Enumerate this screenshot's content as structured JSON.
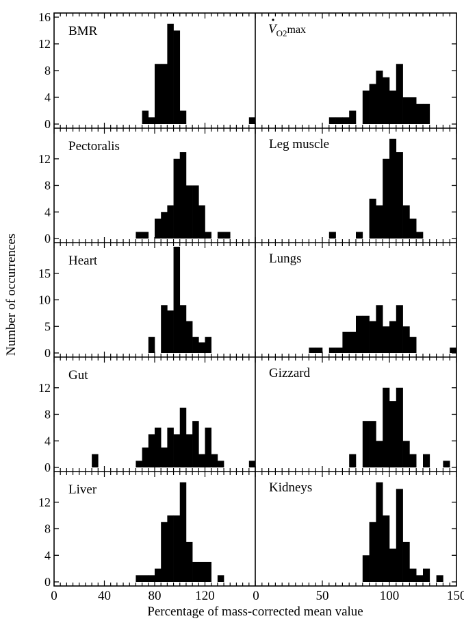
{
  "chart_data": {
    "type": "bar",
    "ylabel": "Number of occurrences",
    "xlabel": "Percentage of mass-corrected mean value",
    "x_ticks_left": [
      "0",
      "40",
      "80",
      "120"
    ],
    "x_ticks_right": [
      "0",
      "50",
      "100",
      "150"
    ],
    "panels": [
      {
        "name": "BMR",
        "title_plain": "BMR",
        "ylim": [
          0,
          16
        ],
        "yticks": [
          "0",
          "4",
          "8",
          "12",
          "16"
        ],
        "xlim": [
          0,
          160
        ],
        "bin_width": 5,
        "bins": [
          {
            "x": 72.5,
            "y": 2
          },
          {
            "x": 77.5,
            "y": 1
          },
          {
            "x": 82.5,
            "y": 9
          },
          {
            "x": 87.5,
            "y": 9
          },
          {
            "x": 92.5,
            "y": 15
          },
          {
            "x": 97.5,
            "y": 14
          },
          {
            "x": 102.5,
            "y": 2
          },
          {
            "x": 157.5,
            "y": 1
          }
        ]
      },
      {
        "name": "VO2max",
        "title_plain": "",
        "ylim": [
          0,
          16
        ],
        "yticks": [],
        "xlim": [
          0,
          150
        ],
        "bin_width": 5,
        "bins": [
          {
            "x": 57.5,
            "y": 1
          },
          {
            "x": 62.5,
            "y": 1
          },
          {
            "x": 67.5,
            "y": 1
          },
          {
            "x": 72.5,
            "y": 2
          },
          {
            "x": 82.5,
            "y": 5
          },
          {
            "x": 87.5,
            "y": 6
          },
          {
            "x": 92.5,
            "y": 8
          },
          {
            "x": 97.5,
            "y": 7
          },
          {
            "x": 102.5,
            "y": 5
          },
          {
            "x": 107.5,
            "y": 9
          },
          {
            "x": 112.5,
            "y": 4
          },
          {
            "x": 117.5,
            "y": 4
          },
          {
            "x": 122.5,
            "y": 3
          },
          {
            "x": 127.5,
            "y": 3
          }
        ]
      },
      {
        "name": "Pectoralis",
        "title_plain": "Pectoralis",
        "ylim": [
          0,
          16
        ],
        "yticks": [
          "0",
          "4",
          "8",
          "12"
        ],
        "xlim": [
          0,
          160
        ],
        "bin_width": 5,
        "bins": [
          {
            "x": 67.5,
            "y": 1
          },
          {
            "x": 72.5,
            "y": 1
          },
          {
            "x": 82.5,
            "y": 3
          },
          {
            "x": 87.5,
            "y": 4
          },
          {
            "x": 92.5,
            "y": 5
          },
          {
            "x": 97.5,
            "y": 12
          },
          {
            "x": 102.5,
            "y": 13
          },
          {
            "x": 107.5,
            "y": 8
          },
          {
            "x": 112.5,
            "y": 8
          },
          {
            "x": 117.5,
            "y": 5
          },
          {
            "x": 122.5,
            "y": 1
          },
          {
            "x": 132.5,
            "y": 1
          },
          {
            "x": 137.5,
            "y": 1
          }
        ]
      },
      {
        "name": "Leg muscle",
        "title_plain": "Leg muscle",
        "ylim": [
          0,
          16
        ],
        "yticks": [],
        "xlim": [
          0,
          150
        ],
        "bin_width": 5,
        "bins": [
          {
            "x": 57.5,
            "y": 1
          },
          {
            "x": 77.5,
            "y": 1
          },
          {
            "x": 87.5,
            "y": 6
          },
          {
            "x": 92.5,
            "y": 5
          },
          {
            "x": 97.5,
            "y": 12
          },
          {
            "x": 102.5,
            "y": 15
          },
          {
            "x": 107.5,
            "y": 13
          },
          {
            "x": 112.5,
            "y": 5
          },
          {
            "x": 117.5,
            "y": 3
          },
          {
            "x": 122.5,
            "y": 1
          }
        ]
      },
      {
        "name": "Heart",
        "title_plain": "Heart",
        "ylim": [
          0,
          20
        ],
        "yticks": [
          "0",
          "5",
          "10",
          "15"
        ],
        "xlim": [
          0,
          160
        ],
        "bin_width": 5,
        "bins": [
          {
            "x": 77.5,
            "y": 3
          },
          {
            "x": 87.5,
            "y": 9
          },
          {
            "x": 92.5,
            "y": 8
          },
          {
            "x": 97.5,
            "y": 20
          },
          {
            "x": 102.5,
            "y": 9
          },
          {
            "x": 107.5,
            "y": 6
          },
          {
            "x": 112.5,
            "y": 3
          },
          {
            "x": 117.5,
            "y": 2
          },
          {
            "x": 122.5,
            "y": 3
          }
        ]
      },
      {
        "name": "Lungs",
        "title_plain": "Lungs",
        "ylim": [
          0,
          20
        ],
        "yticks": [],
        "xlim": [
          0,
          150
        ],
        "bin_width": 5,
        "bins": [
          {
            "x": 42.5,
            "y": 1
          },
          {
            "x": 47.5,
            "y": 1
          },
          {
            "x": 57.5,
            "y": 1
          },
          {
            "x": 62.5,
            "y": 1
          },
          {
            "x": 67.5,
            "y": 4
          },
          {
            "x": 72.5,
            "y": 4
          },
          {
            "x": 77.5,
            "y": 7
          },
          {
            "x": 82.5,
            "y": 7
          },
          {
            "x": 87.5,
            "y": 6
          },
          {
            "x": 92.5,
            "y": 9
          },
          {
            "x": 97.5,
            "y": 5
          },
          {
            "x": 102.5,
            "y": 6
          },
          {
            "x": 107.5,
            "y": 9
          },
          {
            "x": 112.5,
            "y": 5
          },
          {
            "x": 117.5,
            "y": 3
          },
          {
            "x": 147.5,
            "y": 1
          }
        ]
      },
      {
        "name": "Gut",
        "title_plain": "Gut",
        "ylim": [
          0,
          16
        ],
        "yticks": [
          "0",
          "4",
          "8",
          "12"
        ],
        "xlim": [
          0,
          160
        ],
        "bin_width": 5,
        "bins": [
          {
            "x": 32.5,
            "y": 2
          },
          {
            "x": 67.5,
            "y": 1
          },
          {
            "x": 72.5,
            "y": 3
          },
          {
            "x": 77.5,
            "y": 5
          },
          {
            "x": 82.5,
            "y": 6
          },
          {
            "x": 87.5,
            "y": 3
          },
          {
            "x": 92.5,
            "y": 6
          },
          {
            "x": 97.5,
            "y": 5
          },
          {
            "x": 102.5,
            "y": 9
          },
          {
            "x": 107.5,
            "y": 5
          },
          {
            "x": 112.5,
            "y": 7
          },
          {
            "x": 117.5,
            "y": 2
          },
          {
            "x": 122.5,
            "y": 6
          },
          {
            "x": 127.5,
            "y": 2
          },
          {
            "x": 132.5,
            "y": 1
          },
          {
            "x": 157.5,
            "y": 1
          }
        ]
      },
      {
        "name": "Gizzard",
        "title_plain": "Gizzard",
        "ylim": [
          0,
          16
        ],
        "yticks": [],
        "xlim": [
          0,
          150
        ],
        "bin_width": 5,
        "bins": [
          {
            "x": 72.5,
            "y": 2
          },
          {
            "x": 82.5,
            "y": 7
          },
          {
            "x": 87.5,
            "y": 7
          },
          {
            "x": 92.5,
            "y": 4
          },
          {
            "x": 97.5,
            "y": 12
          },
          {
            "x": 102.5,
            "y": 10
          },
          {
            "x": 107.5,
            "y": 12
          },
          {
            "x": 112.5,
            "y": 4
          },
          {
            "x": 117.5,
            "y": 2
          },
          {
            "x": 127.5,
            "y": 2
          },
          {
            "x": 142.5,
            "y": 1
          }
        ]
      },
      {
        "name": "Liver",
        "title_plain": "Liver",
        "ylim": [
          0,
          16
        ],
        "yticks": [
          "0",
          "4",
          "8",
          "12"
        ],
        "xlim": [
          0,
          160
        ],
        "bin_width": 5,
        "bins": [
          {
            "x": 67.5,
            "y": 1
          },
          {
            "x": 72.5,
            "y": 1
          },
          {
            "x": 77.5,
            "y": 1
          },
          {
            "x": 82.5,
            "y": 2
          },
          {
            "x": 87.5,
            "y": 9
          },
          {
            "x": 92.5,
            "y": 10
          },
          {
            "x": 97.5,
            "y": 10
          },
          {
            "x": 102.5,
            "y": 15
          },
          {
            "x": 107.5,
            "y": 6
          },
          {
            "x": 112.5,
            "y": 3
          },
          {
            "x": 117.5,
            "y": 3
          },
          {
            "x": 122.5,
            "y": 3
          },
          {
            "x": 132.5,
            "y": 1
          }
        ]
      },
      {
        "name": "Kidneys",
        "title_plain": "Kidneys",
        "ylim": [
          0,
          16
        ],
        "yticks": [],
        "xlim": [
          0,
          150
        ],
        "bin_width": 5,
        "bins": [
          {
            "x": 82.5,
            "y": 4
          },
          {
            "x": 87.5,
            "y": 9
          },
          {
            "x": 92.5,
            "y": 15
          },
          {
            "x": 97.5,
            "y": 10
          },
          {
            "x": 102.5,
            "y": 5
          },
          {
            "x": 107.5,
            "y": 14
          },
          {
            "x": 112.5,
            "y": 6
          },
          {
            "x": 117.5,
            "y": 2
          },
          {
            "x": 122.5,
            "y": 1
          },
          {
            "x": 127.5,
            "y": 2
          },
          {
            "x": 137.5,
            "y": 1
          }
        ]
      }
    ]
  }
}
